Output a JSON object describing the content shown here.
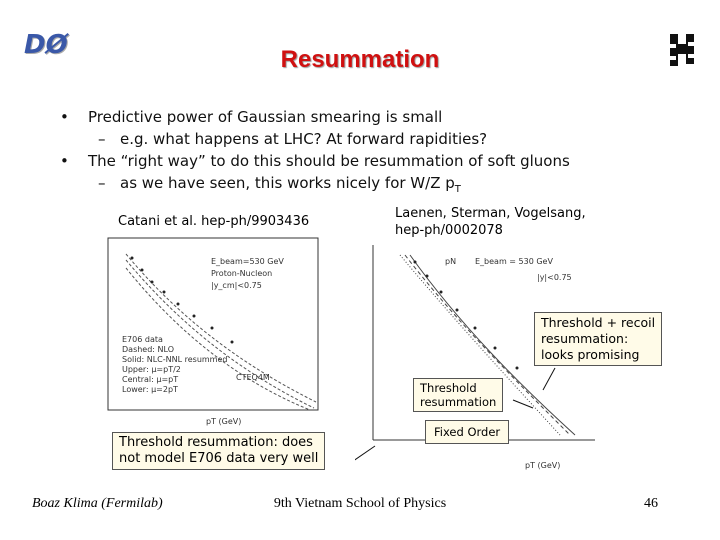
{
  "header": {
    "logo": "DØ",
    "title": "Resummation"
  },
  "bullets": [
    {
      "text": "Predictive power of Gaussian smearing is small",
      "sub": [
        "e.g. what happens at LHC?  At forward rapidities?"
      ]
    },
    {
      "text": "The “right way” to do this should be resummation of soft gluons",
      "sub": [
        "as we have seen, this works nicely for W/Z p"
      ],
      "subscript": "T"
    }
  ],
  "left_plot": {
    "reference": "Catani et al. hep-ph/9903436",
    "labels": [
      "E_beam=530 GeV",
      "Proton-Nucleon",
      "|y_cm|<0.75",
      "E706 data",
      "Dashed: NLO",
      "Solid: NLC-NNL resummed",
      "Upper: μ=pT/2",
      "Central: μ=pT",
      "Lower: μ=2pT",
      "CTEQ4M",
      "pT (GeV)"
    ],
    "callout": [
      "Threshold resummation: does",
      "not model E706 data very well"
    ]
  },
  "right_plot": {
    "reference": [
      "Laenen, Sterman, Vogelsang,",
      "hep-ph/0002078"
    ],
    "labels": [
      "pN",
      "E_beam = 530 GeV",
      "|y|<0.75",
      "pT (GeV)"
    ],
    "callouts": [
      [
        "Threshold + recoil",
        "resummation:",
        "looks promising"
      ],
      [
        "Threshold",
        "resummation"
      ],
      [
        "Fixed Order"
      ]
    ]
  },
  "footer": {
    "author": "Boaz Klima (Fermilab)",
    "event": "9th Vietnam School of Physics",
    "page": "46"
  }
}
